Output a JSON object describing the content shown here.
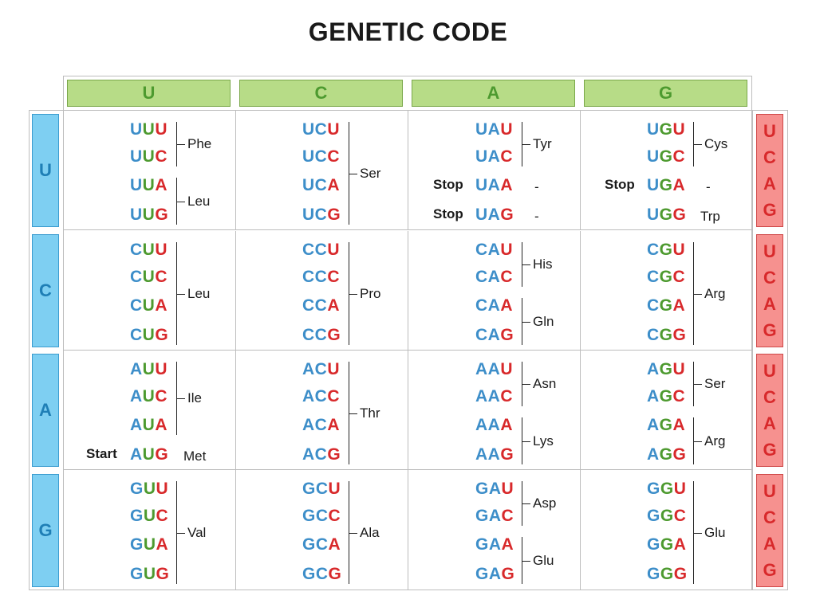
{
  "title": "GENETIC CODE",
  "second_position": [
    "U",
    "C",
    "A",
    "G"
  ],
  "first_position": [
    "U",
    "C",
    "A",
    "G"
  ],
  "third_position": [
    "U",
    "C",
    "A",
    "G"
  ],
  "colors": {
    "U": "#d8292b",
    "C": "#3d8ec9",
    "A": "#d8292b",
    "G": "#4d9a2f",
    "top_header_bg": "#b7dc87",
    "left_header_bg": "#7ecff2",
    "right_header_bg": "#f6918f"
  },
  "cells": [
    [
      {
        "groups": [
          {
            "codons": [
              "UUU",
              "UUC"
            ],
            "aa": "Phe"
          },
          {
            "codons": [
              "UUA",
              "UUG"
            ],
            "aa": "Leu"
          }
        ]
      },
      {
        "groups": [
          {
            "codons": [
              "UCU",
              "UCC",
              "UCA",
              "UCG"
            ],
            "aa": "Ser"
          }
        ]
      },
      {
        "groups": [
          {
            "codons": [
              "UAU",
              "UAC"
            ],
            "aa": "Tyr"
          },
          {
            "codons": [
              "UAA"
            ],
            "aa": "-",
            "tag": "Stop",
            "single": true
          },
          {
            "codons": [
              "UAG"
            ],
            "aa": "-",
            "tag": "Stop",
            "single": true
          }
        ]
      },
      {
        "groups": [
          {
            "codons": [
              "UGU",
              "UGC"
            ],
            "aa": "Cys"
          },
          {
            "codons": [
              "UGA"
            ],
            "aa": "-",
            "tag": "Stop",
            "single": true
          },
          {
            "codons": [
              "UGG"
            ],
            "aa": "Trp",
            "single": true
          }
        ]
      }
    ],
    [
      {
        "groups": [
          {
            "codons": [
              "CUU",
              "CUC",
              "CUA",
              "CUG"
            ],
            "aa": "Leu"
          }
        ]
      },
      {
        "groups": [
          {
            "codons": [
              "CCU",
              "CCC",
              "CCA",
              "CCG"
            ],
            "aa": "Pro"
          }
        ]
      },
      {
        "groups": [
          {
            "codons": [
              "CAU",
              "CAC"
            ],
            "aa": "His"
          },
          {
            "codons": [
              "CAA",
              "CAG"
            ],
            "aa": "Gln"
          }
        ]
      },
      {
        "groups": [
          {
            "codons": [
              "CGU",
              "CGC",
              "CGA",
              "CGG"
            ],
            "aa": "Arg"
          }
        ]
      }
    ],
    [
      {
        "groups": [
          {
            "codons": [
              "AUU",
              "AUC",
              "AUA"
            ],
            "aa": "Ile"
          },
          {
            "codons": [
              "AUG"
            ],
            "aa": "Met",
            "tag": "Start",
            "single": true
          }
        ]
      },
      {
        "groups": [
          {
            "codons": [
              "ACU",
              "ACC",
              "ACA",
              "ACG"
            ],
            "aa": "Thr"
          }
        ]
      },
      {
        "groups": [
          {
            "codons": [
              "AAU",
              "AAC"
            ],
            "aa": "Asn"
          },
          {
            "codons": [
              "AAA",
              "AAG"
            ],
            "aa": "Lys"
          }
        ]
      },
      {
        "groups": [
          {
            "codons": [
              "AGU",
              "AGC"
            ],
            "aa": "Ser"
          },
          {
            "codons": [
              "AGA",
              "AGG"
            ],
            "aa": "Arg"
          }
        ]
      }
    ],
    [
      {
        "groups": [
          {
            "codons": [
              "GUU",
              "GUC",
              "GUA",
              "GUG"
            ],
            "aa": "Val"
          }
        ]
      },
      {
        "groups": [
          {
            "codons": [
              "GCU",
              "GCC",
              "GCA",
              "GCG"
            ],
            "aa": "Ala"
          }
        ]
      },
      {
        "groups": [
          {
            "codons": [
              "GAU",
              "GAC"
            ],
            "aa": "Asp"
          },
          {
            "codons": [
              "GAA",
              "GAG"
            ],
            "aa": "Glu"
          }
        ]
      },
      {
        "groups": [
          {
            "codons": [
              "GGU",
              "GGC",
              "GGA",
              "GGG"
            ],
            "aa": "Glu"
          }
        ]
      }
    ]
  ]
}
